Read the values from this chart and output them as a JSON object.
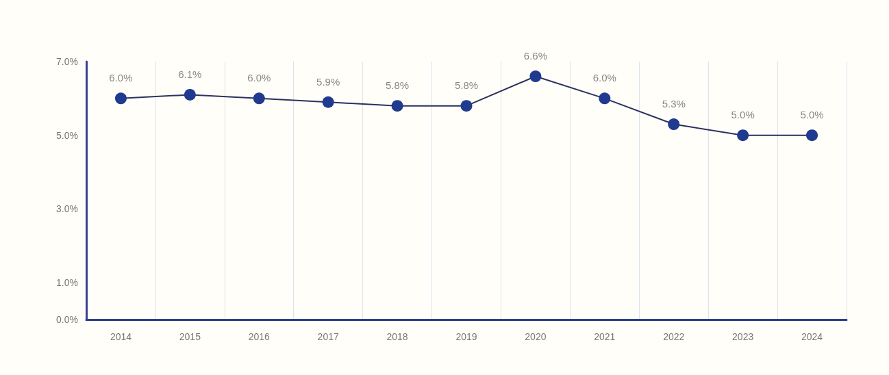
{
  "chart_data": {
    "type": "line",
    "categories": [
      "2014",
      "2015",
      "2016",
      "2017",
      "2018",
      "2019",
      "2020",
      "2021",
      "2022",
      "2023",
      "2024"
    ],
    "series": [
      {
        "color": "#1f3a8f",
        "values": [
          6.0,
          6.1,
          6.0,
          5.9,
          5.8,
          5.8,
          6.6,
          6.0,
          5.3,
          5.0,
          5.0
        ],
        "value_labels": [
          "6.0%",
          "6.1%",
          "6.0%",
          "5.9%",
          "5.8%",
          "5.8%",
          "6.6%",
          "6.0%",
          "5.3%",
          "5.0%",
          "5.0%"
        ]
      }
    ],
    "ylim": [
      0,
      7
    ],
    "yticks": [
      {
        "value": 0,
        "label": "0.0%"
      },
      {
        "value": 1,
        "label": "1.0%"
      },
      {
        "value": 3,
        "label": "3.0%"
      },
      {
        "value": 5,
        "label": "5.0%"
      },
      {
        "value": 7,
        "label": "7.0%"
      }
    ],
    "grid": "x",
    "marker": "circle",
    "line_style": "solid"
  }
}
